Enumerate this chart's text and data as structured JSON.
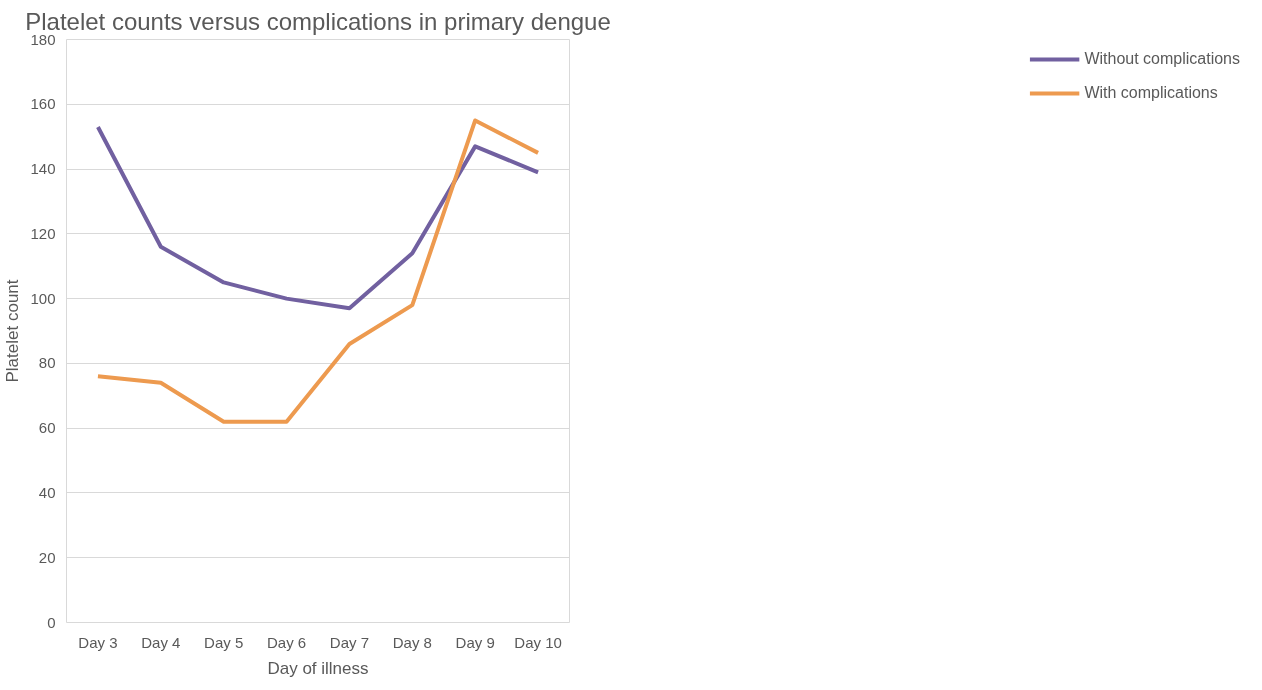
{
  "chart_data": {
    "type": "line",
    "title": "Platelet counts versus complications in primary dengue",
    "xlabel": "Day of illness",
    "ylabel": "Platelet count",
    "categories": [
      "Day 3",
      "Day 4",
      "Day 5",
      "Day 6",
      "Day 7",
      "Day 8",
      "Day 9",
      "Day 10"
    ],
    "series": [
      {
        "name": "Without complications",
        "color": "#7160a0",
        "values": [
          153,
          116,
          105,
          100,
          97,
          114,
          147,
          139
        ]
      },
      {
        "name": "With complications",
        "color": "#ed9a4f",
        "values": [
          76,
          74,
          62,
          62,
          86,
          98,
          155,
          145
        ]
      }
    ],
    "ylim": [
      0,
      180
    ],
    "yticks": [
      0,
      20,
      40,
      60,
      80,
      100,
      120,
      140,
      160,
      180
    ],
    "grid": "y",
    "legend": "right",
    "marker": "none",
    "line_style": "solid"
  }
}
